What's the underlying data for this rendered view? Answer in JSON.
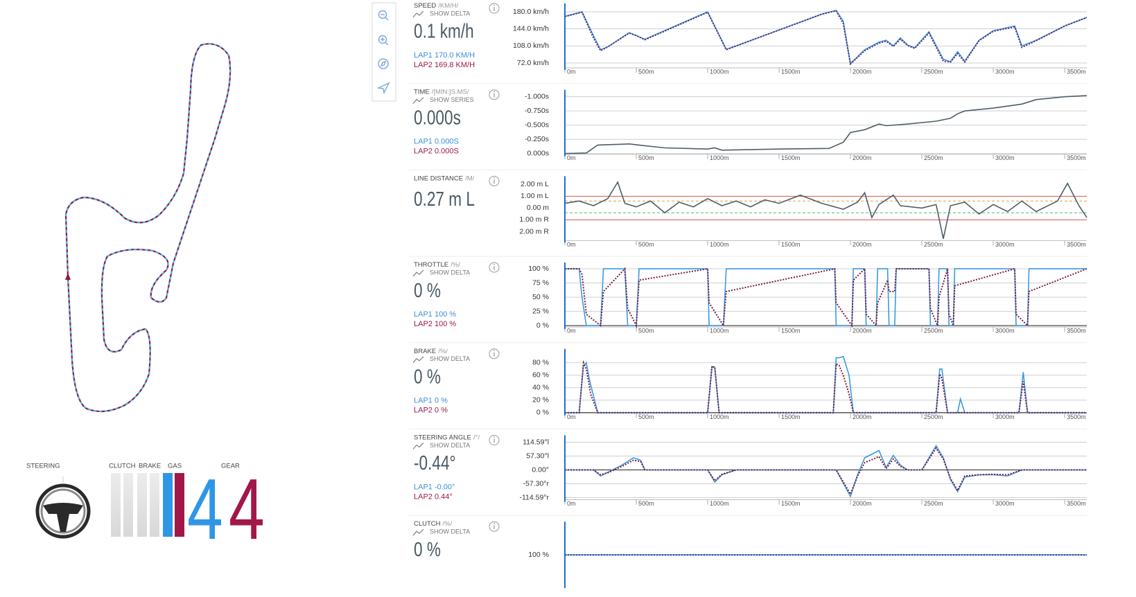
{
  "dashboard": {
    "steering_label": "STEERING",
    "clutch_label": "CLUTCH",
    "brake_label": "BRAKE",
    "gas_label": "GAS",
    "gear_label": "GEAR",
    "gear_lap1": 4,
    "gear_lap2": 4
  },
  "chart_data": [
    {
      "type": "line",
      "title": "SPEED",
      "unit": "/KM/H/",
      "toggle": "SHOW DELTA",
      "current": "0.1 km/h",
      "readouts": [
        "LAP1 170.0 KM/H",
        "LAP2 169.8 KM/H"
      ],
      "x": [
        0,
        120,
        200,
        250,
        300,
        450,
        500,
        560,
        1000,
        1130,
        1200,
        1800,
        1900,
        1950,
        2000,
        2100,
        2200,
        2250,
        2300,
        2350,
        2400,
        2450,
        2550,
        2650,
        2700,
        2750,
        2800,
        2900,
        3000,
        3150,
        3200,
        3300,
        3500,
        3655
      ],
      "series": [
        {
          "color": "#3a9be0",
          "style": "solid",
          "values": [
            170,
            180,
            130,
            100,
            106,
            136,
            130,
            122,
            180,
            101,
            108,
            175,
            183,
            160,
            71,
            100,
            116,
            120,
            108,
            125,
            110,
            104,
            138,
            80,
            75,
            96,
            76,
            120,
            140,
            150,
            108,
            120,
            150,
            168
          ]
        },
        {
          "color": "#5a2a6b",
          "style": "dotted",
          "values": [
            170,
            179,
            125,
            98,
            106,
            135,
            130,
            121,
            179,
            100,
            108,
            175,
            182,
            155,
            70,
            98,
            114,
            118,
            107,
            122,
            109,
            103,
            135,
            76,
            74,
            92,
            74,
            119,
            139,
            148,
            105,
            119,
            150,
            168
          ]
        }
      ],
      "xlim": [
        0,
        3655
      ],
      "xticks": [
        {
          "value": 0,
          "label": "0m"
        },
        {
          "value": 500,
          "label": "500m"
        },
        {
          "value": 1000,
          "label": "1000m"
        },
        {
          "value": 1500,
          "label": "1500m"
        },
        {
          "value": 2000,
          "label": "2000m"
        },
        {
          "value": 2500,
          "label": "2500m"
        },
        {
          "value": 3000,
          "label": "3000m"
        },
        {
          "value": 3500,
          "label": "3500m"
        }
      ],
      "ylim": [
        61.8,
        193.1
      ],
      "yticks": [
        {
          "value": 72,
          "label": "72.0 km/h"
        },
        {
          "value": 108,
          "label": "108.0 km/h"
        },
        {
          "value": 144,
          "label": "144.0 km/h"
        },
        {
          "value": 180,
          "label": "180.0 km/h"
        }
      ],
      "grid": true
    },
    {
      "type": "line",
      "title": "TIME",
      "unit": "/[MIN:]S.MS/",
      "toggle": "SHOW SERIES",
      "current": "0.000s",
      "readouts": [
        "LAP1 0.000S",
        "LAP2 0.000S"
      ],
      "x": [
        0,
        150,
        230,
        350,
        450,
        550,
        700,
        1000,
        1050,
        1100,
        1500,
        1850,
        1950,
        2000,
        2100,
        2200,
        2250,
        2400,
        2600,
        2700,
        2750,
        2800,
        3000,
        3200,
        3300,
        3500,
        3655
      ],
      "series": [
        {
          "color": "#4d5d66",
          "style": "solid",
          "values": [
            0,
            -0.01,
            -0.15,
            -0.16,
            -0.17,
            -0.14,
            -0.1,
            -0.08,
            -0.1,
            -0.06,
            -0.08,
            -0.09,
            -0.2,
            -0.37,
            -0.42,
            -0.52,
            -0.49,
            -0.52,
            -0.57,
            -0.62,
            -0.7,
            -0.75,
            -0.8,
            -0.87,
            -0.95,
            -1.0,
            -1.02
          ]
        }
      ],
      "xlim": [
        0,
        3655
      ],
      "xticks": [
        {
          "value": 0,
          "label": "0m"
        },
        {
          "value": 500,
          "label": "500m"
        },
        {
          "value": 1000,
          "label": "1000m"
        },
        {
          "value": 1500,
          "label": "1500m"
        },
        {
          "value": 2000,
          "label": "2000m"
        },
        {
          "value": 2500,
          "label": "2500m"
        },
        {
          "value": 3000,
          "label": "3000m"
        },
        {
          "value": 3500,
          "label": "3500m"
        }
      ],
      "ylim": [
        0.012,
        -1.085
      ],
      "yticks": [
        {
          "value": -1,
          "label": "-1.000s"
        },
        {
          "value": -0.75,
          "label": "-0.750s"
        },
        {
          "value": -0.5,
          "label": "-0.500s"
        },
        {
          "value": -0.25,
          "label": "-0.250s"
        },
        {
          "value": 0,
          "label": "0.000s"
        }
      ],
      "grid": true
    },
    {
      "type": "line",
      "title": "LINE DISTANCE",
      "unit": "/M/",
      "current": "0.27 m L",
      "readouts": [],
      "x": [
        0,
        100,
        200,
        300,
        370,
        420,
        500,
        600,
        700,
        800,
        900,
        1000,
        1100,
        1200,
        1300,
        1400,
        1500,
        1650,
        1800,
        1950,
        2050,
        2100,
        2150,
        2200,
        2300,
        2350,
        2500,
        2600,
        2650,
        2700,
        2800,
        2900,
        3000,
        3100,
        3200,
        3300,
        3450,
        3520,
        3600,
        3655
      ],
      "series": [
        {
          "color": "#4d5d66",
          "style": "solid",
          "values": [
            0.4,
            0.6,
            0.2,
            0.8,
            2.2,
            0.4,
            0.1,
            0.6,
            -0.4,
            0.5,
            0.1,
            0.8,
            0.2,
            0.6,
            0.1,
            0.7,
            0.4,
            1.1,
            0.4,
            -0.1,
            0.5,
            1.3,
            -0.8,
            0.3,
            1.1,
            0.2,
            0.0,
            0.3,
            -2.6,
            0.2,
            0.5,
            -0.5,
            0.3,
            -0.3,
            0.6,
            -0.3,
            0.6,
            2.1,
            0.2,
            -0.8
          ]
        }
      ],
      "reference_lines": [
        {
          "value": 1,
          "color": "#d9534f",
          "style": "solid"
        },
        {
          "value": 0.6,
          "color": "#e0a030",
          "style": "dashed"
        },
        {
          "value": -0.4,
          "color": "#5cb85c",
          "style": "dashed"
        },
        {
          "value": -1,
          "color": "#d9534f",
          "style": "solid"
        }
      ],
      "xlim": [
        0,
        3655
      ],
      "xticks": [
        {
          "value": 0,
          "label": "0m"
        },
        {
          "value": 500,
          "label": "500m"
        },
        {
          "value": 1000,
          "label": "1000m"
        },
        {
          "value": 1500,
          "label": "1500m"
        },
        {
          "value": 2000,
          "label": "2000m"
        },
        {
          "value": 2500,
          "label": "2500m"
        },
        {
          "value": 3000,
          "label": "3000m"
        },
        {
          "value": 3500,
          "label": "3500m"
        }
      ],
      "ylim": [
        -2.76,
        2.53
      ],
      "yticks": [
        {
          "value": 2,
          "label": "2.00 m L"
        },
        {
          "value": 1,
          "label": "1.00 m L"
        },
        {
          "value": 0,
          "label": "0.00 m"
        },
        {
          "value": -1,
          "label": "1.00 m R"
        },
        {
          "value": -2,
          "label": "2.00 m R"
        }
      ],
      "grid": false
    },
    {
      "type": "line",
      "title": "THROTTLE",
      "unit": "/%/",
      "toggle": "SHOW DELTA",
      "current": "0 %",
      "readouts": [
        "LAP1 100 %",
        "LAP2 100 %"
      ],
      "x": [
        0,
        100,
        120,
        150,
        250,
        270,
        420,
        440,
        500,
        520,
        1000,
        1010,
        1110,
        1130,
        1890,
        1900,
        2010,
        2020,
        2100,
        2110,
        2180,
        2190,
        2260,
        2270,
        2310,
        2320,
        2550,
        2560,
        2610,
        2620,
        2680,
        2690,
        2720,
        2730,
        3150,
        3160,
        3240,
        3250,
        3655
      ],
      "series": [
        {
          "color": "#3a9be0",
          "style": "solid",
          "values": [
            100,
            100,
            50,
            0,
            0,
            100,
            100,
            0,
            0,
            100,
            100,
            0,
            0,
            100,
            100,
            0,
            0,
            100,
            100,
            0,
            0,
            100,
            100,
            0,
            0,
            100,
            100,
            0,
            0,
            100,
            100,
            0,
            0,
            100,
            100,
            0,
            0,
            100,
            100
          ]
        },
        {
          "color": "#7a1840",
          "style": "dotted",
          "values": [
            100,
            100,
            90,
            20,
            0,
            60,
            100,
            30,
            0,
            80,
            100,
            40,
            0,
            60,
            100,
            40,
            0,
            80,
            100,
            20,
            0,
            40,
            80,
            60,
            60,
            100,
            100,
            30,
            0,
            50,
            100,
            20,
            0,
            70,
            100,
            20,
            0,
            60,
            100
          ]
        }
      ],
      "xlim": [
        0,
        3655
      ],
      "xticks": [
        {
          "value": 0,
          "label": "0m"
        },
        {
          "value": 500,
          "label": "500m"
        },
        {
          "value": 1000,
          "label": "1000m"
        },
        {
          "value": 1500,
          "label": "1500m"
        },
        {
          "value": 2000,
          "label": "2000m"
        },
        {
          "value": 2500,
          "label": "2500m"
        },
        {
          "value": 3000,
          "label": "3000m"
        },
        {
          "value": 3500,
          "label": "3500m"
        }
      ],
      "ylim": [
        -2.4,
        107.3
      ],
      "yticks": [
        {
          "value": 0,
          "label": "0 %"
        },
        {
          "value": 25,
          "label": "25 %"
        },
        {
          "value": 50,
          "label": "50 %"
        },
        {
          "value": 75,
          "label": "75 %"
        },
        {
          "value": 100,
          "label": "100 %"
        }
      ],
      "grid": true
    },
    {
      "type": "line",
      "title": "BRAKE",
      "unit": "/%/",
      "toggle": "SHOW DELTA",
      "current": "0 %",
      "readouts": [
        "LAP1 0 %",
        "LAP2 0 %"
      ],
      "x": [
        0,
        100,
        130,
        150,
        170,
        180,
        230,
        1000,
        1030,
        1050,
        1080,
        1880,
        1900,
        1920,
        1950,
        1990,
        2020,
        2600,
        2625,
        2640,
        2680,
        2750,
        2770,
        2800,
        3180,
        3210,
        3240,
        3655
      ],
      "series": [
        {
          "color": "#3a9be0",
          "style": "solid",
          "values": [
            0,
            0,
            75,
            80,
            55,
            45,
            0,
            0,
            73,
            73,
            0,
            0,
            88,
            88,
            90,
            60,
            0,
            0,
            70,
            70,
            0,
            0,
            22,
            0,
            0,
            65,
            0,
            0
          ]
        },
        {
          "color": "#7a1840",
          "style": "dotted",
          "values": [
            0,
            0,
            80,
            70,
            45,
            30,
            0,
            0,
            75,
            72,
            0,
            0,
            78,
            76,
            60,
            30,
            0,
            0,
            62,
            55,
            0,
            0,
            0,
            0,
            0,
            50,
            0,
            0
          ]
        }
      ],
      "xlim": [
        0,
        3655
      ],
      "xticks": [
        {
          "value": 0,
          "label": "0m"
        },
        {
          "value": 500,
          "label": "500m"
        },
        {
          "value": 1000,
          "label": "1000m"
        },
        {
          "value": 1500,
          "label": "1500m"
        },
        {
          "value": 2000,
          "label": "2000m"
        },
        {
          "value": 2500,
          "label": "2500m"
        },
        {
          "value": 3000,
          "label": "3000m"
        },
        {
          "value": 3500,
          "label": "3500m"
        }
      ],
      "ylim": [
        -1.1,
        98.9
      ],
      "yticks": [
        {
          "value": 0,
          "label": "0 %"
        },
        {
          "value": 20,
          "label": "20 %"
        },
        {
          "value": 40,
          "label": "40 %"
        },
        {
          "value": 60,
          "label": "60 %"
        },
        {
          "value": 80,
          "label": "80 %"
        }
      ],
      "grid": true
    },
    {
      "type": "line",
      "title": "STEERING ANGLE",
      "unit": "/°/",
      "toggle": "SHOW DELTA",
      "current": "-0.44°",
      "readouts": [
        "LAP1 -0.00°",
        "LAP2 0.44°"
      ],
      "x": [
        0,
        200,
        250,
        300,
        400,
        480,
        530,
        560,
        800,
        1000,
        1050,
        1100,
        1200,
        1900,
        2000,
        2050,
        2100,
        2200,
        2250,
        2300,
        2350,
        2400,
        2500,
        2600,
        2650,
        2700,
        2750,
        2800,
        2900,
        3000,
        3100,
        3200,
        3655
      ],
      "series": [
        {
          "color": "#3a9be0",
          "style": "solid",
          "values": [
            0,
            0,
            -25,
            -10,
            20,
            50,
            40,
            0,
            0,
            0,
            -50,
            -20,
            0,
            0,
            -110,
            -20,
            50,
            80,
            10,
            60,
            20,
            0,
            0,
            100,
            50,
            -40,
            -90,
            -30,
            -20,
            -20,
            -25,
            0,
            0
          ]
        },
        {
          "color": "#7a1840",
          "style": "dotted",
          "values": [
            0,
            0,
            -20,
            -12,
            15,
            40,
            35,
            0,
            0,
            0,
            -45,
            -18,
            0,
            0,
            -100,
            -25,
            30,
            55,
            5,
            45,
            15,
            0,
            0,
            90,
            45,
            -35,
            -85,
            -25,
            -20,
            -18,
            -20,
            0,
            0
          ]
        }
      ],
      "xlim": [
        0,
        3655
      ],
      "xticks": [
        {
          "value": 0,
          "label": "0m"
        },
        {
          "value": 500,
          "label": "500m"
        },
        {
          "value": 1000,
          "label": "1000m"
        },
        {
          "value": 1500,
          "label": "1500m"
        },
        {
          "value": 2000,
          "label": "2000m"
        },
        {
          "value": 2500,
          "label": "2500m"
        },
        {
          "value": 3000,
          "label": "3000m"
        },
        {
          "value": 3500,
          "label": "3500m"
        }
      ],
      "ylim": [
        -123.2,
        134.6
      ],
      "yticks": [
        {
          "value": 114.59,
          "label": "114.59°l"
        },
        {
          "value": 57.3,
          "label": "57.30°l"
        },
        {
          "value": 0,
          "label": "0.00°"
        },
        {
          "value": -57.3,
          "label": "-57.30°r"
        },
        {
          "value": -114.59,
          "label": "-114.59°r"
        }
      ],
      "grid": true
    },
    {
      "type": "line",
      "title": "CLUTCH",
      "unit": "/%/",
      "toggle": "SHOW DELTA",
      "current": "0 %",
      "readouts": [],
      "x": [
        0,
        3655
      ],
      "series": [
        {
          "color": "#3a9be0",
          "style": "solid",
          "values": [
            100,
            100
          ]
        },
        {
          "color": "#3a3a7a",
          "style": "dotted",
          "values": [
            100,
            100
          ]
        }
      ],
      "xlim": [
        0,
        3655
      ],
      "xticks": [],
      "ylim": [
        0,
        200
      ],
      "yticks": [
        {
          "value": 100,
          "label": "100 %"
        }
      ],
      "grid": true
    }
  ]
}
